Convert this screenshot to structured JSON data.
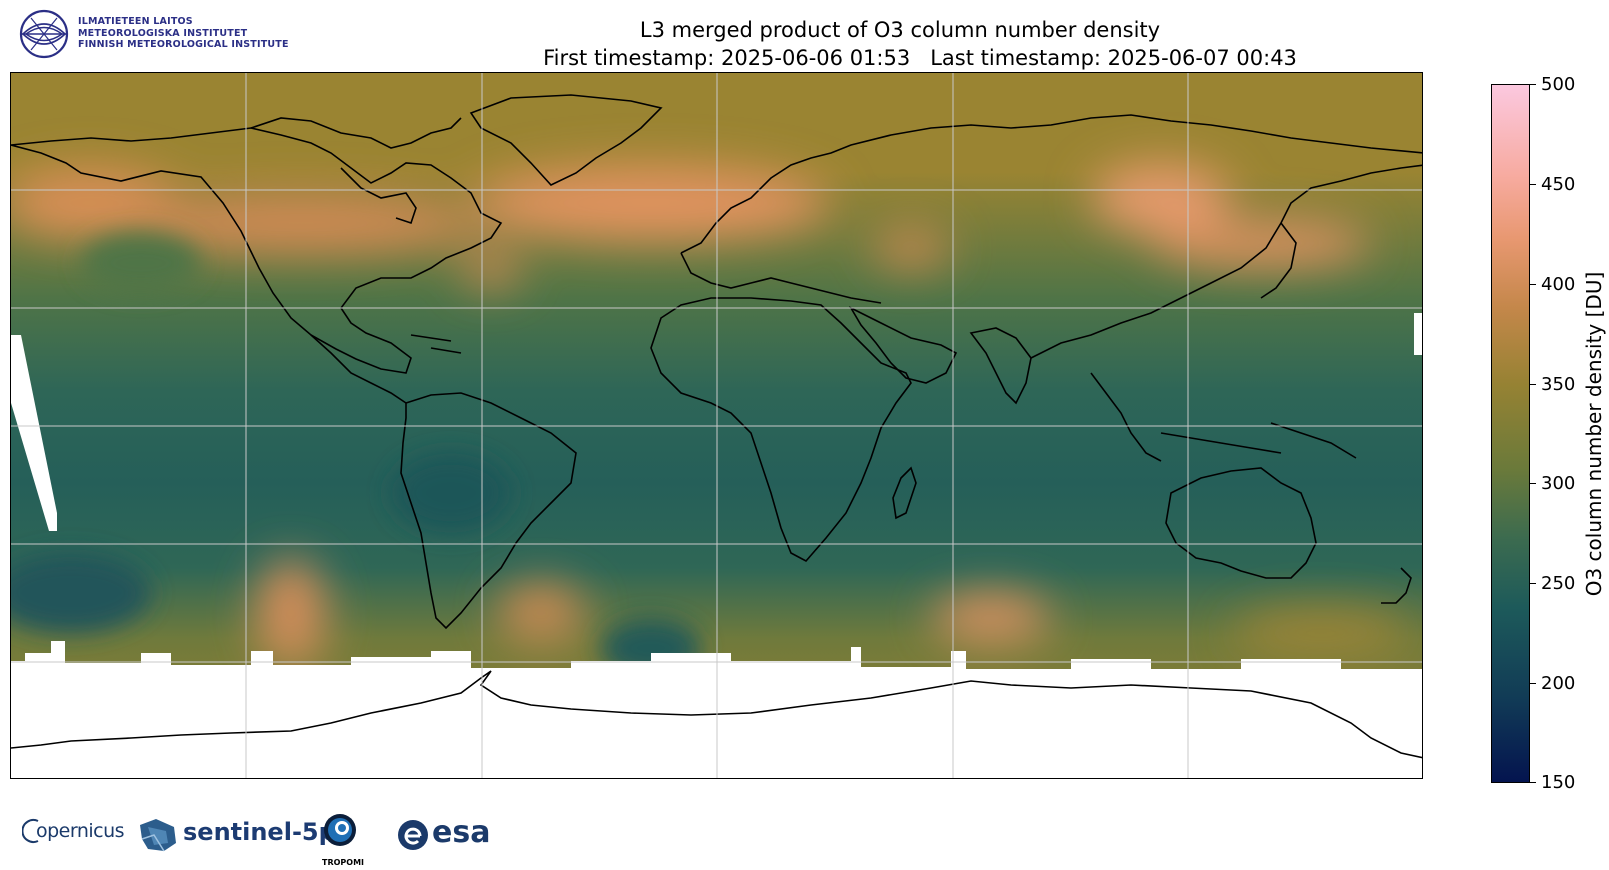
{
  "header": {
    "institute_lines": [
      "ILMATIETEEN LAITOS",
      "METEOROLOGISKA INSTITUTET",
      "FINNISH METEOROLOGICAL INSTITUTE"
    ],
    "title_line1": "L3 merged product of O3 column number density",
    "title_line2": "First timestamp: 2025-06-06 01:53   Last timestamp: 2025-06-07 00:43"
  },
  "colorbar": {
    "label": "O3 column number density [DU]",
    "min": 150,
    "max": 500,
    "ticks": [
      "500",
      "450",
      "400",
      "350",
      "300",
      "250",
      "200",
      "150"
    ]
  },
  "map": {
    "projection": "plate carree",
    "gridlines": true,
    "coastlines": true,
    "colors": {
      "low": "#1d5a5a",
      "mid": "#968233",
      "high": "#e89871",
      "no_data": "#ffffff"
    }
  },
  "footer": {
    "logos": [
      "opernicus",
      "sentinel-5p",
      "TROPOMI",
      "esa"
    ]
  }
}
